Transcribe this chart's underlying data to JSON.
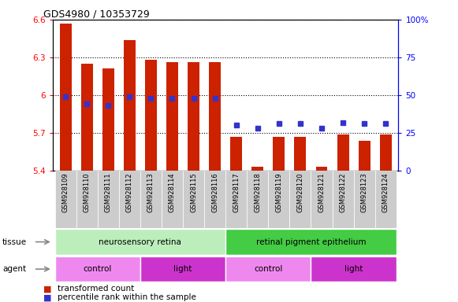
{
  "title": "GDS4980 / 10353729",
  "samples": [
    "GSM928109",
    "GSM928110",
    "GSM928111",
    "GSM928112",
    "GSM928113",
    "GSM928114",
    "GSM928115",
    "GSM928116",
    "GSM928117",
    "GSM928118",
    "GSM928119",
    "GSM928120",
    "GSM928121",
    "GSM928122",
    "GSM928123",
    "GSM928124"
  ],
  "bar_values": [
    6.57,
    6.25,
    6.21,
    6.44,
    6.28,
    6.26,
    6.26,
    6.26,
    5.67,
    5.43,
    5.67,
    5.67,
    5.43,
    5.69,
    5.64,
    5.69
  ],
  "bar_bottom": 5.4,
  "percentile_values": [
    49,
    44,
    43,
    49,
    48,
    48,
    48,
    48,
    30,
    28,
    31,
    31,
    28,
    32,
    31,
    31
  ],
  "ylim_left": [
    5.4,
    6.6
  ],
  "ylim_right": [
    0,
    100
  ],
  "yticks_left": [
    5.4,
    5.7,
    6.0,
    6.3,
    6.6
  ],
  "yticks_right": [
    0,
    25,
    50,
    75,
    100
  ],
  "bar_color": "#cc2200",
  "dot_color": "#3333cc",
  "plot_bg": "#ffffff",
  "label_bg": "#d0d0d0",
  "tissue_row": [
    {
      "label": "neurosensory retina",
      "start": 0,
      "end": 8,
      "color": "#bbeebb"
    },
    {
      "label": "retinal pigment epithelium",
      "start": 8,
      "end": 16,
      "color": "#44cc44"
    }
  ],
  "agent_row": [
    {
      "label": "control",
      "start": 0,
      "end": 4,
      "color": "#ee88ee"
    },
    {
      "label": "light",
      "start": 4,
      "end": 8,
      "color": "#cc33cc"
    },
    {
      "label": "control",
      "start": 8,
      "end": 12,
      "color": "#ee88ee"
    },
    {
      "label": "light",
      "start": 12,
      "end": 16,
      "color": "#cc33cc"
    }
  ],
  "legend_items": [
    {
      "label": "transformed count",
      "color": "#cc2200"
    },
    {
      "label": "percentile rank within the sample",
      "color": "#3333cc"
    }
  ]
}
